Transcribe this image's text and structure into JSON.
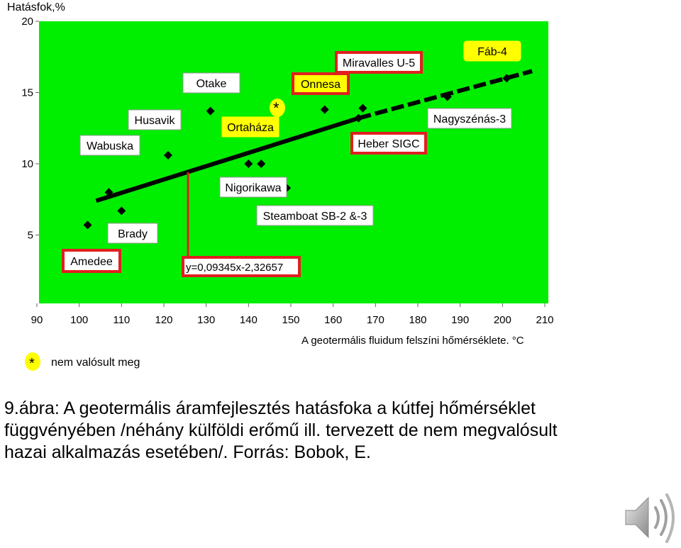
{
  "chart_data": {
    "type": "scatter",
    "ylabel": "Hatásfok,%",
    "xlabel": "A geotermális fluidum felszíni hőmérséklete. °C",
    "xlim": [
      90,
      210
    ],
    "ylim": [
      0,
      20
    ],
    "x_ticks": [
      90,
      100,
      110,
      120,
      130,
      140,
      150,
      160,
      170,
      180,
      190,
      200,
      210
    ],
    "y_ticks": [
      5,
      10,
      15,
      20
    ],
    "grid": false,
    "plot_background": "#00ee00",
    "points": [
      {
        "x": 102,
        "y": 5.7
      },
      {
        "x": 107,
        "y": 8.0
      },
      {
        "x": 110,
        "y": 6.7
      },
      {
        "x": 121,
        "y": 10.6
      },
      {
        "x": 140,
        "y": 10.0
      },
      {
        "x": 143,
        "y": 10.0
      },
      {
        "x": 131,
        "y": 13.7
      },
      {
        "x": 149,
        "y": 8.3
      },
      {
        "x": 158,
        "y": 13.8
      },
      {
        "x": 166,
        "y": 13.2
      },
      {
        "x": 167,
        "y": 13.9
      },
      {
        "x": 187,
        "y": 14.7
      },
      {
        "x": 201,
        "y": 16.0
      }
    ],
    "trend_solid": {
      "x": [
        104,
        166
      ],
      "y": [
        7.4,
        13.2
      ]
    },
    "trend_dashed": {
      "x": [
        166,
        207
      ],
      "y": [
        13.2,
        16.5
      ]
    },
    "equation": "y=0,09345x-2,32657",
    "labels": {
      "wabuska": "Wabuska",
      "husavik": "Husavik",
      "otake": "Otake",
      "ortahaza": "Ortaháza",
      "onnesa": "Onnesa",
      "miravalles": "Miravalles U-5",
      "fab4": "Fáb-4",
      "nagyszenas": "Nagyszénás-3",
      "heber": "Heber SIGC",
      "nigorikawa": "Nigorikawa",
      "steamboat": "Steamboat SB-2 &-3",
      "brady": "Brady",
      "amedee": "Amedee"
    },
    "star": "*",
    "legend_text": "nem valósult meg",
    "legend_position": "bottom-left",
    "colors": {
      "highlight_box": "#e02020",
      "star_fill": "#ffff00",
      "trend": "#000000"
    }
  },
  "caption_lines": [
    "9.ábra: A geotermális áramfejlesztés hatásfoka a kútfej hőmérséklet",
    "függvényében /néhány külföldi erőmű ill. tervezett de nem megvalósult",
    "hazai alkalmazás esetében/. Forrás: Bobok, E."
  ]
}
